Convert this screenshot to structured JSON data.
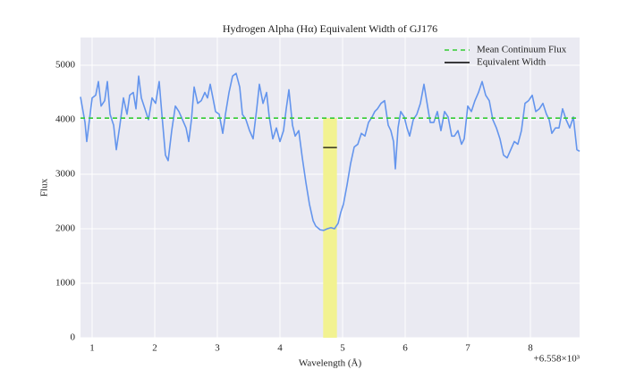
{
  "chart_data": {
    "type": "line",
    "title": "Hydrogen Alpha (Hα) Equivalent Width of GJ176",
    "x_label": "Wavelength (Å)",
    "y_label": "Flux",
    "x_offset_label": "+6.558×10³",
    "xlim": [
      0.814,
      8.786
    ],
    "ylim": [
      0,
      5508
    ],
    "xticks": [
      1,
      2,
      3,
      4,
      5,
      6,
      7,
      8
    ],
    "yticks": [
      0,
      1000,
      2000,
      3000,
      4000,
      5000
    ],
    "grid": true,
    "legend": "upper right",
    "band_color": "#f2f291",
    "flux": {
      "color": "#6495ed",
      "x": [
        0.814,
        0.886,
        0.914,
        0.957,
        1.0,
        1.057,
        1.1,
        1.143,
        1.2,
        1.243,
        1.286,
        1.343,
        1.386,
        1.443,
        1.5,
        1.557,
        1.6,
        1.657,
        1.7,
        1.743,
        1.786,
        1.843,
        1.9,
        1.957,
        2.014,
        2.071,
        2.114,
        2.171,
        2.214,
        2.271,
        2.329,
        2.386,
        2.443,
        2.5,
        2.543,
        2.586,
        2.629,
        2.686,
        2.743,
        2.8,
        2.843,
        2.886,
        2.929,
        2.971,
        3.029,
        3.086,
        3.129,
        3.186,
        3.243,
        3.3,
        3.357,
        3.4,
        3.457,
        3.514,
        3.571,
        3.629,
        3.671,
        3.729,
        3.786,
        3.829,
        3.886,
        3.943,
        4.0,
        4.057,
        4.1,
        4.143,
        4.2,
        4.243,
        4.3,
        4.357,
        4.414,
        4.471,
        4.529,
        4.571,
        4.643,
        4.7,
        4.757,
        4.814,
        4.871,
        4.929,
        4.971,
        5.014,
        5.071,
        5.129,
        5.186,
        5.243,
        5.3,
        5.357,
        5.414,
        5.471,
        5.514,
        5.557,
        5.614,
        5.671,
        5.729,
        5.771,
        5.814,
        5.843,
        5.886,
        5.929,
        5.986,
        6.029,
        6.071,
        6.129,
        6.186,
        6.243,
        6.3,
        6.343,
        6.4,
        6.457,
        6.514,
        6.571,
        6.629,
        6.686,
        6.743,
        6.786,
        6.843,
        6.9,
        6.943,
        7.0,
        7.057,
        7.114,
        7.171,
        7.229,
        7.286,
        7.343,
        7.4,
        7.457,
        7.514,
        7.571,
        7.629,
        7.686,
        7.743,
        7.8,
        7.857,
        7.914,
        7.971,
        8.029,
        8.086,
        8.143,
        8.2,
        8.257,
        8.3,
        8.343,
        8.4,
        8.457,
        8.514,
        8.571,
        8.629,
        8.686,
        8.743,
        8.786
      ],
      "values": [
        4420,
        3950,
        3600,
        4000,
        4400,
        4450,
        4700,
        4250,
        4350,
        4700,
        4100,
        3900,
        3450,
        3900,
        4400,
        4100,
        4450,
        4500,
        4200,
        4800,
        4400,
        4200,
        4000,
        4400,
        4300,
        4700,
        4100,
        3350,
        3250,
        3800,
        4250,
        4150,
        4000,
        3850,
        3600,
        4000,
        4600,
        4300,
        4350,
        4500,
        4400,
        4650,
        4400,
        4150,
        4100,
        3750,
        4100,
        4500,
        4800,
        4850,
        4600,
        4100,
        4000,
        3800,
        3650,
        4200,
        4650,
        4300,
        4500,
        4050,
        3650,
        3850,
        3600,
        3800,
        4200,
        4550,
        3900,
        3700,
        3800,
        3300,
        2850,
        2450,
        2150,
        2050,
        1980,
        1970,
        2000,
        2020,
        2000,
        2100,
        2300,
        2450,
        2800,
        3200,
        3500,
        3550,
        3750,
        3700,
        3950,
        4050,
        4150,
        4200,
        4300,
        4350,
        3900,
        3800,
        3600,
        3100,
        3850,
        4150,
        4050,
        3850,
        3700,
        4000,
        4100,
        4300,
        4650,
        4350,
        3950,
        3950,
        4150,
        3800,
        4150,
        4050,
        3700,
        3700,
        3800,
        3550,
        3650,
        4250,
        4150,
        4350,
        4500,
        4700,
        4450,
        4350,
        4000,
        3850,
        3650,
        3350,
        3300,
        3450,
        3600,
        3550,
        3800,
        4300,
        4350,
        4450,
        4150,
        4200,
        4300,
        4100,
        4000,
        3750,
        3850,
        3850,
        4200,
        4000,
        3850,
        4050,
        3450,
        3420
      ]
    },
    "continuum": {
      "name": "Mean Continuum Flux",
      "color": "#33cc33",
      "value": 4030
    },
    "equivalent_width": {
      "name": "Equivalent Width",
      "color": "#000000",
      "x": [
        4.69,
        4.91
      ],
      "value": 3490
    }
  }
}
